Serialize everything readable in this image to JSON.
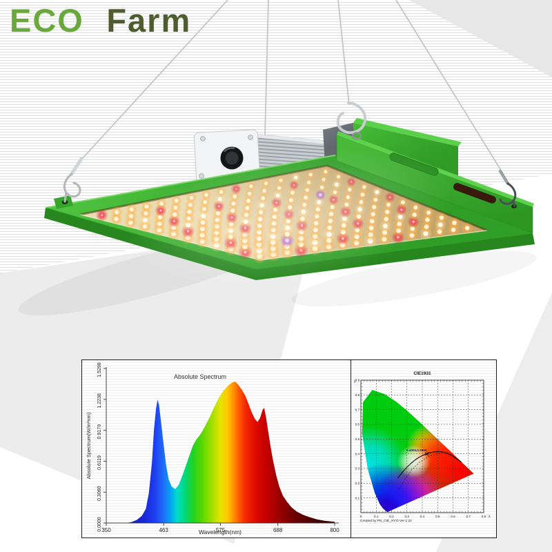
{
  "logo": {
    "eco": "ECO",
    "farm": "Farm"
  },
  "background": {
    "base_color": "#ffffff",
    "stripe_color": "#dedede",
    "wall_color": "#ececec"
  },
  "fixture": {
    "description": "quantum board LED grow light hanging on four steel cables",
    "frame_color": "#3eb82f",
    "frame_dark": "#27871e",
    "frame_light": "#55ca45",
    "board_color": "#d9c189",
    "wire_color": "#c3c6c9",
    "hardware_color": "#b5b9bc",
    "driver_plate_color": "#f2f4f5",
    "driver_fin_color": "#c9ced3",
    "gland_color": "#141517",
    "driver_box_face": "#565c63",
    "hang_wires": 4,
    "led_grid": {
      "cols": 16,
      "rows": 12
    },
    "led_colors": {
      "warm_glow": "#ffb14a",
      "warm_core": "#ffeec5",
      "white_glow": "#ffd990",
      "white_core": "#fffbee",
      "red_glow": "#e01b30",
      "red_core": "#ff5260",
      "purple_glow": "#8f2fd6",
      "purple_core": "#d9a4ff"
    }
  },
  "chart_data": [
    {
      "type": "area",
      "title": "Absolute Spectrum",
      "xlabel": "Wavelength(nm)",
      "ylabel": "Absolute Spectrum(W/m²nm)",
      "xlim": [
        350,
        800
      ],
      "ylim": [
        0,
        1.5298
      ],
      "xticks": [
        350,
        463,
        575,
        688,
        800
      ],
      "ytick_labels": [
        "0.0000",
        "0.3060",
        "0.6119",
        "0.9179",
        "1.2238",
        "1.5298"
      ],
      "ytick_values": [
        0,
        0.306,
        0.6119,
        0.9179,
        1.2238,
        1.5298
      ],
      "fill": "spectral rainbow gradient",
      "grid": false,
      "points": [
        [
          350,
          0
        ],
        [
          390,
          0
        ],
        [
          400,
          0.01
        ],
        [
          410,
          0.03
        ],
        [
          420,
          0.07
        ],
        [
          428,
          0.14
        ],
        [
          434,
          0.3
        ],
        [
          440,
          0.6
        ],
        [
          444,
          0.92
        ],
        [
          448,
          1.13
        ],
        [
          451,
          1.22
        ],
        [
          454,
          1.17
        ],
        [
          458,
          1.0
        ],
        [
          463,
          0.78
        ],
        [
          468,
          0.57
        ],
        [
          473,
          0.43
        ],
        [
          479,
          0.36
        ],
        [
          486,
          0.335
        ],
        [
          493,
          0.38
        ],
        [
          500,
          0.47
        ],
        [
          507,
          0.57
        ],
        [
          514,
          0.67
        ],
        [
          521,
          0.77
        ],
        [
          528,
          0.83
        ],
        [
          536,
          0.88
        ],
        [
          545,
          0.96
        ],
        [
          554,
          1.05
        ],
        [
          563,
          1.15
        ],
        [
          572,
          1.24
        ],
        [
          581,
          1.31
        ],
        [
          590,
          1.36
        ],
        [
          598,
          1.39
        ],
        [
          604,
          1.4
        ],
        [
          610,
          1.37
        ],
        [
          617,
          1.32
        ],
        [
          624,
          1.26
        ],
        [
          631,
          1.17
        ],
        [
          637,
          1.09
        ],
        [
          643,
          1.03
        ],
        [
          648,
          1.0
        ],
        [
          653,
          1.04
        ],
        [
          658,
          1.12
        ],
        [
          661,
          1.14
        ],
        [
          665,
          1.04
        ],
        [
          669,
          0.91
        ],
        [
          674,
          0.75
        ],
        [
          679,
          0.61
        ],
        [
          685,
          0.47
        ],
        [
          691,
          0.36
        ],
        [
          698,
          0.27
        ],
        [
          706,
          0.21
        ],
        [
          715,
          0.155
        ],
        [
          725,
          0.115
        ],
        [
          738,
          0.08
        ],
        [
          752,
          0.055
        ],
        [
          766,
          0.035
        ],
        [
          780,
          0.022
        ],
        [
          800,
          0.012
        ]
      ]
    },
    {
      "type": "chromaticity",
      "title": "CIE1931",
      "xlabel": "x",
      "ylabel": "y",
      "xlim": [
        0,
        0.8
      ],
      "ylim": [
        0,
        0.9
      ],
      "xticks": [
        "0",
        "0.1",
        "0.2",
        "0.3",
        "0.4",
        "0.5",
        "0.6",
        "0.7",
        "0.8"
      ],
      "yticks": [
        "0.1",
        "0.2",
        "0.3",
        "0.4",
        "0.5",
        "0.6",
        "0.7",
        "0.8",
        "0.9"
      ],
      "grid": "dashed",
      "footer": "Created by PN_CIE_XY'D Ver 1.22",
      "point": {
        "x": 0.4304,
        "y": 0.3994,
        "label": "0.4304,0.3994"
      },
      "spectral_locus": [
        [
          0.1741,
          0.005
        ],
        [
          0.166,
          0.009
        ],
        [
          0.1566,
          0.0177
        ],
        [
          0.144,
          0.0297
        ],
        [
          0.1241,
          0.0578
        ],
        [
          0.0913,
          0.1327
        ],
        [
          0.0454,
          0.295
        ],
        [
          0.0082,
          0.5384
        ],
        [
          0.0139,
          0.7502
        ],
        [
          0.0743,
          0.8338
        ],
        [
          0.1547,
          0.8059
        ],
        [
          0.2296,
          0.7543
        ],
        [
          0.3016,
          0.6923
        ],
        [
          0.3731,
          0.6245
        ],
        [
          0.4441,
          0.5547
        ],
        [
          0.5125,
          0.4866
        ],
        [
          0.5752,
          0.4242
        ],
        [
          0.627,
          0.3725
        ],
        [
          0.6658,
          0.334
        ],
        [
          0.6915,
          0.3083
        ],
        [
          0.7079,
          0.292
        ],
        [
          0.719,
          0.2809
        ],
        [
          0.7347,
          0.2653
        ]
      ],
      "planckian_locus": [
        [
          0.24,
          0.234
        ],
        [
          0.257,
          0.257
        ],
        [
          0.281,
          0.288
        ],
        [
          0.307,
          0.316
        ],
        [
          0.33,
          0.338
        ],
        [
          0.357,
          0.361
        ],
        [
          0.38,
          0.377
        ],
        [
          0.417,
          0.396
        ],
        [
          0.437,
          0.404
        ],
        [
          0.476,
          0.413
        ],
        [
          0.51,
          0.415
        ],
        [
          0.527,
          0.413
        ],
        [
          0.56,
          0.404
        ],
        [
          0.585,
          0.393
        ],
        [
          0.612,
          0.375
        ],
        [
          0.64,
          0.355
        ],
        [
          0.655,
          0.344
        ]
      ],
      "daylight_locus": [
        [
          0.25,
          0.16
        ],
        [
          0.29,
          0.23
        ],
        [
          0.33,
          0.29
        ],
        [
          0.38,
          0.34
        ],
        [
          0.44,
          0.382
        ],
        [
          0.5,
          0.4
        ],
        [
          0.55,
          0.408
        ]
      ]
    }
  ]
}
